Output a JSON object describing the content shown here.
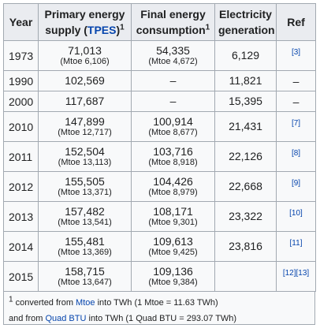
{
  "headers": {
    "year": "Year",
    "tpes_line1": "Primary energy",
    "tpes_line2_pre": "supply (",
    "tpes_link": "TPES",
    "tpes_line2_post": ")",
    "tpes_sup": "1",
    "final_line1": "Final energy",
    "final_line2": "consumption",
    "final_sup": "1",
    "elec_line1": "Electricity",
    "elec_line2": "generation",
    "ref": "Ref"
  },
  "rows": [
    {
      "year": "1973",
      "tpes": "71,013",
      "tpes_mtoe": "(Mtoe 6,106)",
      "final": "54,335",
      "final_mtoe": "(Mtoe 4,672)",
      "elec": "6,129",
      "ref": "[3]"
    },
    {
      "year": "1990",
      "tpes": "102,569",
      "tpes_mtoe": "",
      "final": "–",
      "final_mtoe": "",
      "elec": "11,821",
      "ref": "–"
    },
    {
      "year": "2000",
      "tpes": "117,687",
      "tpes_mtoe": "",
      "final": "–",
      "final_mtoe": "",
      "elec": "15,395",
      "ref": "–"
    },
    {
      "year": "2010",
      "tpes": "147,899",
      "tpes_mtoe": "(Mtoe 12,717)",
      "final": "100,914",
      "final_mtoe": "(Mtoe 8,677)",
      "elec": "21,431",
      "ref": "[7]"
    },
    {
      "year": "2011",
      "tpes": "152,504",
      "tpes_mtoe": "(Mtoe 13,113)",
      "final": "103,716",
      "final_mtoe": "(Mtoe 8,918)",
      "elec": "22,126",
      "ref": "[8]"
    },
    {
      "year": "2012",
      "tpes": "155,505",
      "tpes_mtoe": "(Mtoe 13,371)",
      "final": "104,426",
      "final_mtoe": "(Mtoe 8,979)",
      "elec": "22,668",
      "ref": "[9]"
    },
    {
      "year": "2013",
      "tpes": "157,482",
      "tpes_mtoe": "(Mtoe 13,541)",
      "final": "108,171",
      "final_mtoe": "(Mtoe 9,301)",
      "elec": "23,322",
      "ref": "[10]"
    },
    {
      "year": "2014",
      "tpes": "155,481",
      "tpes_mtoe": "(Mtoe 13,369)",
      "final": "109,613",
      "final_mtoe": "(Mtoe 9,425)",
      "elec": "23,816",
      "ref": "[11]"
    },
    {
      "year": "2015",
      "tpes": "158,715",
      "tpes_mtoe": "(Mtoe 13,647)",
      "final": "109,136",
      "final_mtoe": "(Mtoe 9,384)",
      "elec": "",
      "ref": "[12][13]"
    }
  ],
  "footnote": {
    "sup": "1",
    "line1_pre": " converted from ",
    "line1_link": "Mtoe",
    "line1_post": " into TWh (1 Mtoe = 11.63 TWh)",
    "line2_pre": "and from ",
    "line2_link": "Quad BTU",
    "line2_post": " into TWh (1 Quad BTU = 293.07 TWh)"
  }
}
